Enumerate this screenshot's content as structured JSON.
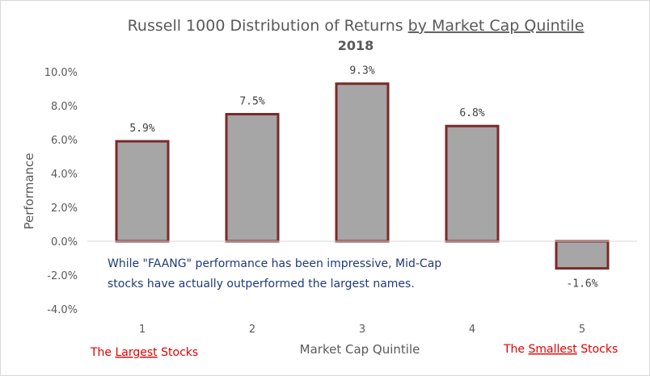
{
  "chart_data": {
    "type": "bar",
    "title_parts": [
      "Russell 1000 Distribution of Returns ",
      "by Market Cap Quintile"
    ],
    "subtitle": "2018",
    "xlabel": "Market Cap Quintile",
    "ylabel": "Performance",
    "categories": [
      "1",
      "2",
      "3",
      "4",
      "5"
    ],
    "values": [
      5.9,
      7.5,
      9.3,
      6.8,
      -1.6
    ],
    "data_labels": [
      "5.9%",
      "7.5%",
      "9.3%",
      "6.8%",
      "-1.6%"
    ],
    "ylim": [
      -4.0,
      10.0
    ],
    "yticks": [
      10.0,
      8.0,
      6.0,
      4.0,
      2.0,
      0.0,
      -2.0,
      -4.0
    ],
    "ytick_labels": [
      "10.0%",
      "8.0%",
      "6.0%",
      "4.0%",
      "2.0%",
      "0.0%",
      "-2.0%",
      "-4.0%"
    ],
    "grid": false,
    "bar_color": "#a6a6a6",
    "bar_edge_color": "#7b2a2a",
    "annotation_lines": [
      "While \"FAANG\" performance has been impressive, Mid-Cap",
      "stocks have actually outperformed the largest names."
    ],
    "left_note_parts": [
      "The ",
      "Largest",
      " Stocks"
    ],
    "right_note_parts": [
      "The ",
      "Smallest",
      " Stocks"
    ],
    "note_color": "#e00000",
    "annotation_color": "#1f3a7a"
  }
}
